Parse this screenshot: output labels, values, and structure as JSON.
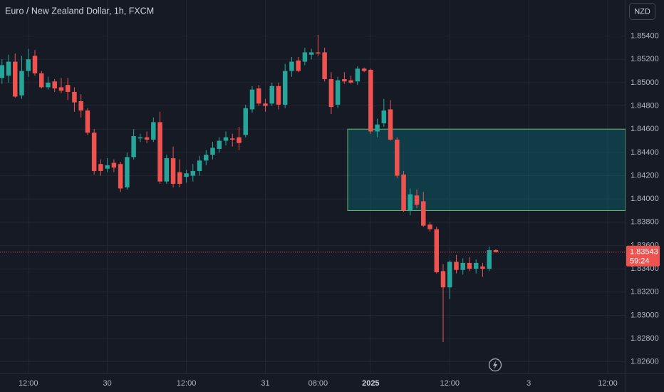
{
  "chart_data": {
    "type": "candlestick",
    "title": "Euro / New Zealand Dollar, 1h, FXCM",
    "currency": "NZD",
    "up_color": "#26a69a",
    "down_color": "#ef5350",
    "grid": true,
    "ylim": [
      1.825,
      1.8571
    ],
    "xlim": [
      -0.3,
      94.7
    ],
    "yticks": [
      {
        "value": 1.854,
        "label": "1.85400"
      },
      {
        "value": 1.852,
        "label": "1.85200"
      },
      {
        "value": 1.85,
        "label": "1.85000"
      },
      {
        "value": 1.848,
        "label": "1.84800"
      },
      {
        "value": 1.846,
        "label": "1.84600"
      },
      {
        "value": 1.844,
        "label": "1.84400"
      },
      {
        "value": 1.842,
        "label": "1.84200"
      },
      {
        "value": 1.84,
        "label": "1.84000"
      },
      {
        "value": 1.838,
        "label": "1.83800"
      },
      {
        "value": 1.836,
        "label": "1.83600"
      },
      {
        "value": 1.834,
        "label": "1.83400"
      },
      {
        "value": 1.832,
        "label": "1.83200"
      },
      {
        "value": 1.83,
        "label": "1.83000"
      },
      {
        "value": 1.828,
        "label": "1.82800"
      },
      {
        "value": 1.826,
        "label": "1.82600"
      }
    ],
    "xticks": [
      {
        "value": 4,
        "label": "12:00"
      },
      {
        "value": 16,
        "label": "30"
      },
      {
        "value": 28,
        "label": "12:00"
      },
      {
        "value": 40,
        "label": "31"
      },
      {
        "value": 48,
        "label": "08:00"
      },
      {
        "value": 56,
        "label": "2025"
      },
      {
        "value": 68,
        "label": "12:00"
      },
      {
        "value": 80,
        "label": "3"
      },
      {
        "value": 92,
        "label": "12:00"
      }
    ],
    "last_price": {
      "value": 1.83543,
      "label": "1.83543"
    },
    "countdown": "59:24",
    "zone": {
      "start": 53,
      "top": 1.846,
      "bottom": 1.839
    },
    "ohlc": [
      [
        1.8504,
        1.852,
        1.8499,
        1.8515
      ],
      [
        1.8506,
        1.8524,
        1.85,
        1.8518
      ],
      [
        1.8518,
        1.8525,
        1.8487,
        1.8488
      ],
      [
        1.8489,
        1.8523,
        1.8486,
        1.851
      ],
      [
        1.851,
        1.8529,
        1.8505,
        1.852
      ],
      [
        1.8523,
        1.8528,
        1.8506,
        1.8508
      ],
      [
        1.8508,
        1.851,
        1.8495,
        1.8496
      ],
      [
        1.8496,
        1.8505,
        1.8494,
        1.85
      ],
      [
        1.8501,
        1.8503,
        1.8492,
        1.8495
      ],
      [
        1.8496,
        1.8504,
        1.8491,
        1.8493
      ],
      [
        1.8498,
        1.8504,
        1.8485,
        1.8492
      ],
      [
        1.8492,
        1.8496,
        1.8475,
        1.8483
      ],
      [
        1.8484,
        1.849,
        1.847,
        1.8476
      ],
      [
        1.8476,
        1.8478,
        1.8455,
        1.8457
      ],
      [
        1.8457,
        1.846,
        1.8421,
        1.8424
      ],
      [
        1.843,
        1.8434,
        1.842,
        1.8424
      ],
      [
        1.8426,
        1.8435,
        1.8423,
        1.8429
      ],
      [
        1.8431,
        1.8434,
        1.8423,
        1.8427
      ],
      [
        1.843,
        1.8432,
        1.8406,
        1.8409
      ],
      [
        1.841,
        1.844,
        1.8408,
        1.8436
      ],
      [
        1.8436,
        1.846,
        1.8434,
        1.8454
      ],
      [
        1.8452,
        1.8456,
        1.8449,
        1.8453
      ],
      [
        1.8453,
        1.8458,
        1.8448,
        1.8451
      ],
      [
        1.8451,
        1.847,
        1.8449,
        1.8466
      ],
      [
        1.8466,
        1.8475,
        1.8413,
        1.8415
      ],
      [
        1.8415,
        1.8438,
        1.8413,
        1.8435
      ],
      [
        1.8435,
        1.8445,
        1.841,
        1.8413
      ],
      [
        1.8423,
        1.8434,
        1.841,
        1.8413
      ],
      [
        1.8419,
        1.8425,
        1.8414,
        1.8422
      ],
      [
        1.842,
        1.843,
        1.8415,
        1.8424
      ],
      [
        1.8424,
        1.8437,
        1.842,
        1.8433
      ],
      [
        1.8433,
        1.8442,
        1.8429,
        1.8438
      ],
      [
        1.8438,
        1.8449,
        1.8434,
        1.8444
      ],
      [
        1.8443,
        1.8453,
        1.844,
        1.845
      ],
      [
        1.845,
        1.8458,
        1.8446,
        1.8453
      ],
      [
        1.8452,
        1.8456,
        1.8445,
        1.8451
      ],
      [
        1.8453,
        1.8462,
        1.8442,
        1.8448
      ],
      [
        1.8455,
        1.8481,
        1.8453,
        1.8478
      ],
      [
        1.8477,
        1.8497,
        1.8474,
        1.8494
      ],
      [
        1.8495,
        1.8498,
        1.848,
        1.8482
      ],
      [
        1.8482,
        1.8486,
        1.8475,
        1.848
      ],
      [
        1.8482,
        1.85,
        1.848,
        1.8497
      ],
      [
        1.8497,
        1.85,
        1.8477,
        1.8481
      ],
      [
        1.8481,
        1.8516,
        1.8478,
        1.851
      ],
      [
        1.851,
        1.8522,
        1.8505,
        1.8518
      ],
      [
        1.8519,
        1.8522,
        1.8509,
        1.851
      ],
      [
        1.8518,
        1.853,
        1.8515,
        1.8526
      ],
      [
        1.8524,
        1.8529,
        1.852,
        1.8526
      ],
      [
        1.8526,
        1.8541,
        1.8523,
        1.8525
      ],
      [
        1.8526,
        1.853,
        1.8501,
        1.8503
      ],
      [
        1.8503,
        1.8509,
        1.8473,
        1.8479
      ],
      [
        1.8481,
        1.8505,
        1.8478,
        1.8502
      ],
      [
        1.8503,
        1.8509,
        1.8499,
        1.8501
      ],
      [
        1.8502,
        1.8506,
        1.8499,
        1.85
      ],
      [
        1.8501,
        1.8514,
        1.8498,
        1.8512
      ],
      [
        1.8512,
        1.8513,
        1.8509,
        1.851
      ],
      [
        1.8511,
        1.8512,
        1.8456,
        1.8458
      ],
      [
        1.8458,
        1.8469,
        1.8453,
        1.8464
      ],
      [
        1.8465,
        1.8486,
        1.8462,
        1.8476
      ],
      [
        1.8477,
        1.8485,
        1.845,
        1.8451
      ],
      [
        1.8451,
        1.8453,
        1.8418,
        1.842
      ],
      [
        1.8421,
        1.8424,
        1.8389,
        1.839
      ],
      [
        1.839,
        1.8409,
        1.8386,
        1.8404
      ],
      [
        1.8403,
        1.8408,
        1.8392,
        1.8395
      ],
      [
        1.8398,
        1.8406,
        1.8376,
        1.8377
      ],
      [
        1.8378,
        1.838,
        1.8372,
        1.8374
      ],
      [
        1.8374,
        1.8376,
        1.8336,
        1.8337
      ],
      [
        1.8338,
        1.8344,
        1.8277,
        1.8324
      ],
      [
        1.8324,
        1.8347,
        1.8314,
        1.8346
      ],
      [
        1.8346,
        1.8352,
        1.8336,
        1.8339
      ],
      [
        1.8339,
        1.8349,
        1.8335,
        1.8345
      ],
      [
        1.8345,
        1.835,
        1.8338,
        1.834
      ],
      [
        1.834,
        1.8348,
        1.8336,
        1.8345
      ],
      [
        1.8342,
        1.8345,
        1.8333,
        1.834
      ],
      [
        1.834,
        1.8359,
        1.8338,
        1.8356
      ],
      [
        1.8356,
        1.8357,
        1.8354,
        1.83543
      ]
    ]
  }
}
